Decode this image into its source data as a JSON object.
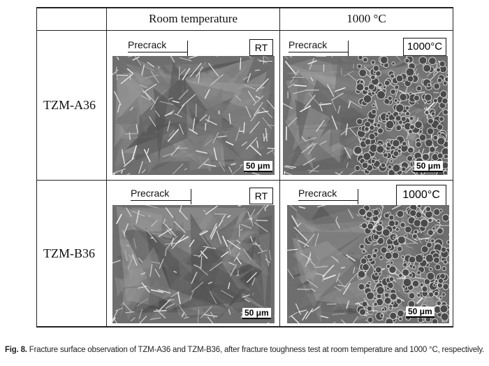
{
  "table": {
    "column_headers": [
      "Room temperature",
      "1000 °C"
    ],
    "rows": [
      {
        "label": "TZM-A36",
        "panels": [
          {
            "precrack": "Precrack",
            "tag": "RT",
            "scale": "50 μm"
          },
          {
            "precrack": "Precrack",
            "tag": "1000°C",
            "scale": "50 μm"
          }
        ]
      },
      {
        "label": "TZM-B36",
        "panels": [
          {
            "precrack": "Precrack",
            "tag": "RT",
            "scale": "50 μm"
          },
          {
            "precrack": "Precrack",
            "tag": "1000°C",
            "scale": "50 μm"
          }
        ]
      }
    ]
  },
  "caption": {
    "label": "Fig. 8.",
    "text": " Fracture surface observation of TZM-A36 and TZM-B36, after fracture toughness test at room temperature and 1000 °C, respectively."
  }
}
